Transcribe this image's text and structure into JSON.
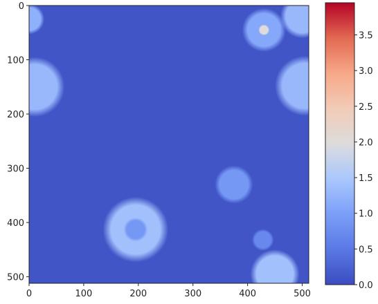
{
  "chart_data": {
    "type": "heatmap",
    "colormap": "coolwarm",
    "xlim": [
      0,
      512
    ],
    "ylim": [
      512,
      0
    ],
    "xticks": [
      0,
      100,
      200,
      300,
      400,
      500
    ],
    "yticks": [
      0,
      100,
      200,
      300,
      400,
      500
    ],
    "background": 0.1,
    "blobs": [
      {
        "x": 0,
        "y": 25,
        "r": 28,
        "value": 1.2
      },
      {
        "x": 10,
        "y": 150,
        "r": 55,
        "value": 1.3
      },
      {
        "x": 430,
        "y": 45,
        "r": 40,
        "value": 1.1
      },
      {
        "x": 430,
        "y": 45,
        "r": 10,
        "value": 2.0
      },
      {
        "x": 500,
        "y": 20,
        "r": 40,
        "value": 1.3
      },
      {
        "x": 505,
        "y": 148,
        "r": 55,
        "value": 1.3
      },
      {
        "x": 375,
        "y": 330,
        "r": 35,
        "value": 0.9
      },
      {
        "x": 195,
        "y": 413,
        "r": 60,
        "value": 1.4
      },
      {
        "x": 195,
        "y": 413,
        "r": 22,
        "value": 0.9
      },
      {
        "x": 428,
        "y": 432,
        "r": 20,
        "value": 0.7
      },
      {
        "x": 450,
        "y": 495,
        "r": 45,
        "value": 1.4
      }
    ],
    "clim": [
      0,
      3.95
    ],
    "cticks": [
      {
        "value": 0,
        "label": "0.0"
      },
      {
        "value": 0.5,
        "label": "0.5"
      },
      {
        "value": 1,
        "label": "1.0"
      },
      {
        "value": 1.5,
        "label": "1.5"
      },
      {
        "value": 2,
        "label": "2.0"
      },
      {
        "value": 2.5,
        "label": "2.5"
      },
      {
        "value": 3,
        "label": "3.0"
      },
      {
        "value": 3.5,
        "label": "3.5"
      }
    ]
  }
}
